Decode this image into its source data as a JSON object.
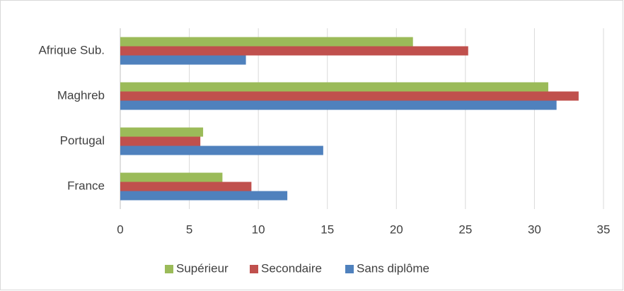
{
  "chart_data": {
    "type": "bar",
    "orientation": "horizontal",
    "categories": [
      "France",
      "Portugal",
      "Maghreb",
      "Afrique Sub."
    ],
    "series": [
      {
        "name": "Supérieur",
        "color": "#9bbb59",
        "values": [
          7.4,
          6.0,
          31.0,
          21.2
        ]
      },
      {
        "name": "Secondaire",
        "color": "#c0504d",
        "values": [
          9.5,
          5.8,
          33.2,
          25.2
        ]
      },
      {
        "name": "Sans diplôme",
        "color": "#4f81bd",
        "values": [
          12.1,
          14.7,
          31.6,
          9.1
        ]
      }
    ],
    "xlim": [
      0,
      35
    ],
    "xticks": [
      0,
      5,
      10,
      15,
      20,
      25,
      30,
      35
    ],
    "grid": true,
    "legend": "bottom"
  }
}
